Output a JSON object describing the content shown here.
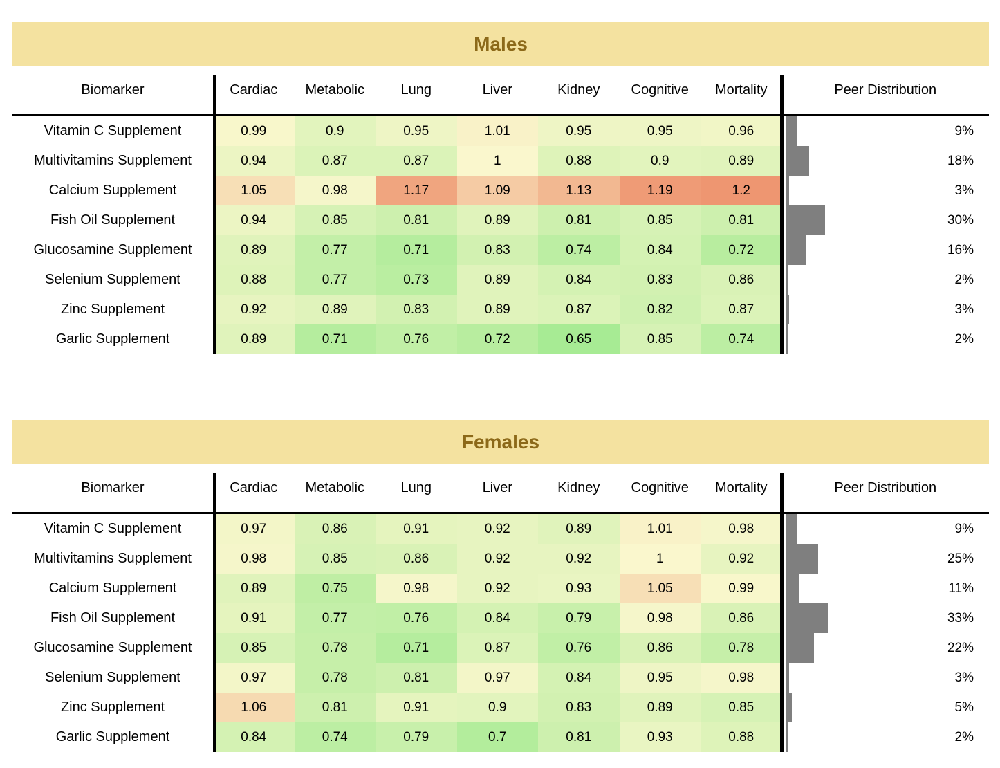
{
  "colors": {
    "page_bg": "#FFFFFF",
    "band_bg": "#F4E2A0",
    "band_text": "#8C6919",
    "bar_fill": "#7F7F7F",
    "grid_line": "#000000",
    "heat_scale": {
      "anchor_values": [
        0.65,
        1.0,
        1.2
      ],
      "anchor_colors": [
        "#A7EB94",
        "#FAF7CD",
        "#EE9671"
      ]
    }
  },
  "chart_data": [
    {
      "type": "heatmap",
      "title": "Males",
      "row_header": "Biomarker",
      "col_labels": [
        "Cardiac",
        "Metabolic",
        "Lung",
        "Liver",
        "Kidney",
        "Cognitive",
        "Mortality"
      ],
      "peer_header": "Peer Distribution",
      "rows": [
        "Vitamin C Supplement",
        "Multivitamins Supplement",
        "Calcium Supplement",
        "Fish Oil Supplement",
        "Glucosamine Supplement",
        "Selenium Supplement",
        "Zinc Supplement",
        "Garlic Supplement"
      ],
      "values": [
        [
          0.99,
          0.9,
          0.95,
          1.01,
          0.95,
          0.95,
          0.96
        ],
        [
          0.94,
          0.87,
          0.87,
          1,
          0.88,
          0.9,
          0.89
        ],
        [
          1.05,
          0.98,
          1.17,
          1.09,
          1.13,
          1.19,
          1.2
        ],
        [
          0.94,
          0.85,
          0.81,
          0.89,
          0.81,
          0.85,
          0.81
        ],
        [
          0.89,
          0.77,
          0.71,
          0.83,
          0.74,
          0.84,
          0.72
        ],
        [
          0.88,
          0.77,
          0.73,
          0.89,
          0.84,
          0.83,
          0.86
        ],
        [
          0.92,
          0.89,
          0.83,
          0.89,
          0.87,
          0.82,
          0.87
        ],
        [
          0.89,
          0.71,
          0.76,
          0.72,
          0.65,
          0.85,
          0.74
        ]
      ],
      "peer_pct": [
        "9%",
        "18%",
        "3%",
        "30%",
        "16%",
        "2%",
        "3%",
        "2%"
      ]
    },
    {
      "type": "heatmap",
      "title": "Females",
      "row_header": "Biomarker",
      "col_labels": [
        "Cardiac",
        "Metabolic",
        "Lung",
        "Liver",
        "Kidney",
        "Cognitive",
        "Mortality"
      ],
      "peer_header": "Peer Distribution",
      "rows": [
        "Vitamin C Supplement",
        "Multivitamins Supplement",
        "Calcium Supplement",
        "Fish Oil Supplement",
        "Glucosamine Supplement",
        "Selenium Supplement",
        "Zinc Supplement",
        "Garlic Supplement"
      ],
      "values": [
        [
          0.97,
          0.86,
          0.91,
          0.92,
          0.89,
          1.01,
          0.98
        ],
        [
          0.98,
          0.85,
          0.86,
          0.92,
          0.92,
          1,
          0.92
        ],
        [
          0.89,
          0.75,
          0.98,
          0.92,
          0.93,
          1.05,
          0.99
        ],
        [
          0.91,
          0.77,
          0.76,
          0.84,
          0.79,
          0.98,
          0.86
        ],
        [
          0.85,
          0.78,
          0.71,
          0.87,
          0.76,
          0.86,
          0.78
        ],
        [
          0.97,
          0.78,
          0.81,
          0.97,
          0.84,
          0.95,
          0.98
        ],
        [
          1.06,
          0.81,
          0.91,
          0.9,
          0.83,
          0.89,
          0.85
        ],
        [
          0.84,
          0.74,
          0.79,
          0.7,
          0.81,
          0.93,
          0.88
        ]
      ],
      "peer_pct": [
        "9%",
        "25%",
        "11%",
        "33%",
        "22%",
        "3%",
        "5%",
        "2%"
      ]
    }
  ]
}
